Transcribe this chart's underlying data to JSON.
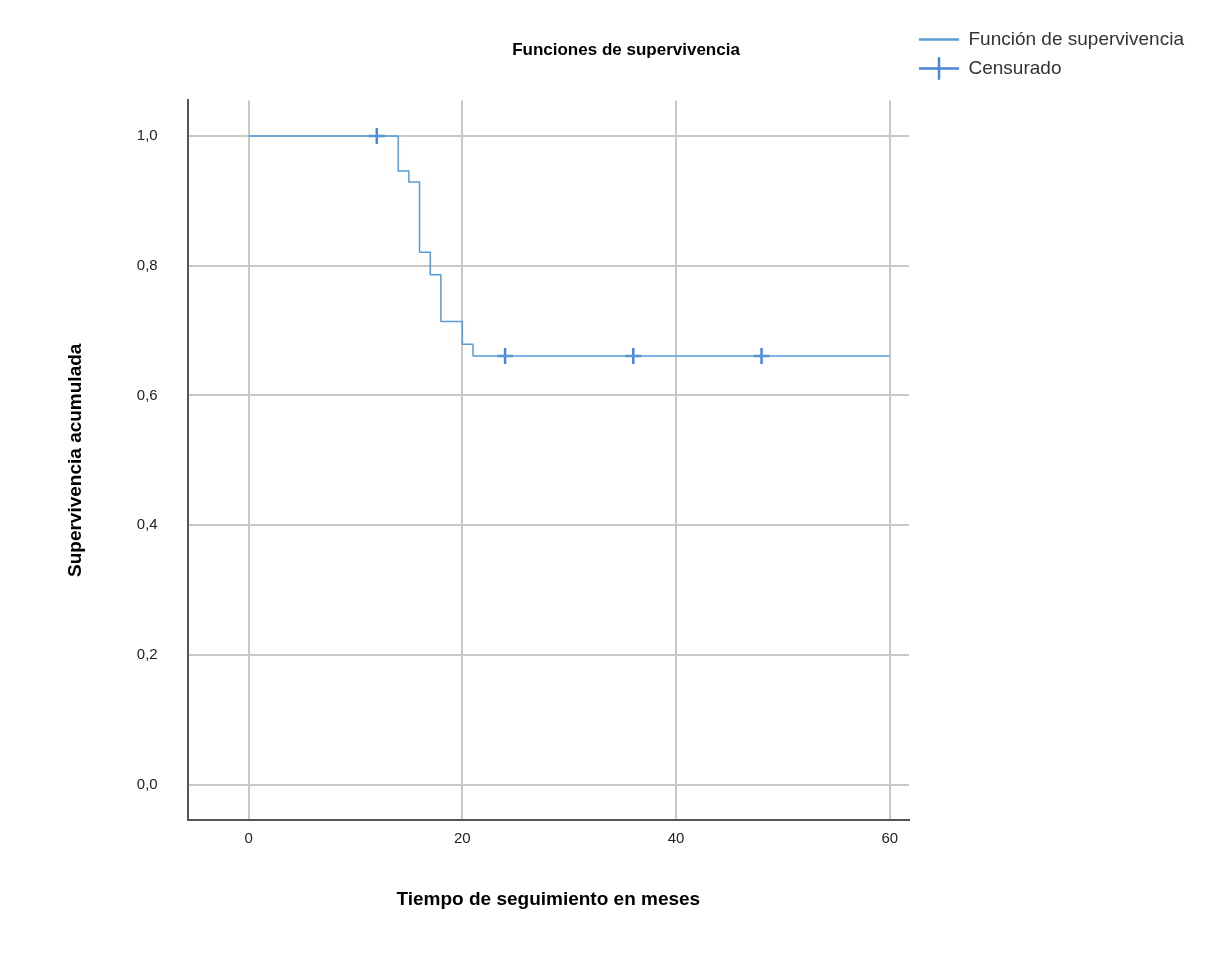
{
  "chart_data": {
    "type": "step",
    "title": "Funciones de supervivencia",
    "xlabel": "Tiempo de seguimiento en meses",
    "ylabel": "Supervivencia acumulada",
    "series": [
      {
        "name": "Función de supervivencia",
        "color": "#5b9bd5",
        "marker": "none",
        "x": [
          0,
          14,
          15,
          16,
          17,
          18,
          20,
          21,
          60
        ],
        "values": [
          1,
          0.946,
          0.929,
          0.821,
          0.786,
          0.714,
          0.679,
          0.661,
          0.661
        ]
      },
      {
        "name": "Censurado",
        "type": "scatter",
        "color": "#4a86d8",
        "marker": "cross",
        "x": [
          12,
          24,
          36,
          48
        ],
        "values": [
          1,
          0.661,
          0.661,
          0.661
        ]
      }
    ],
    "xlim": [
      -5.7,
      61.8
    ],
    "xticks": [
      0,
      20,
      40,
      60
    ],
    "ylim": [
      -0.055,
      1.055
    ],
    "yticks": [
      {
        "value": 0,
        "label": "0,0"
      },
      {
        "value": 0.2,
        "label": "0,2"
      },
      {
        "value": 0.4,
        "label": "0,4"
      },
      {
        "value": 0.6,
        "label": "0,6"
      },
      {
        "value": 0.8,
        "label": "0,8"
      },
      {
        "value": 1,
        "label": "1,0"
      }
    ],
    "grid": true,
    "legend": "top right"
  }
}
